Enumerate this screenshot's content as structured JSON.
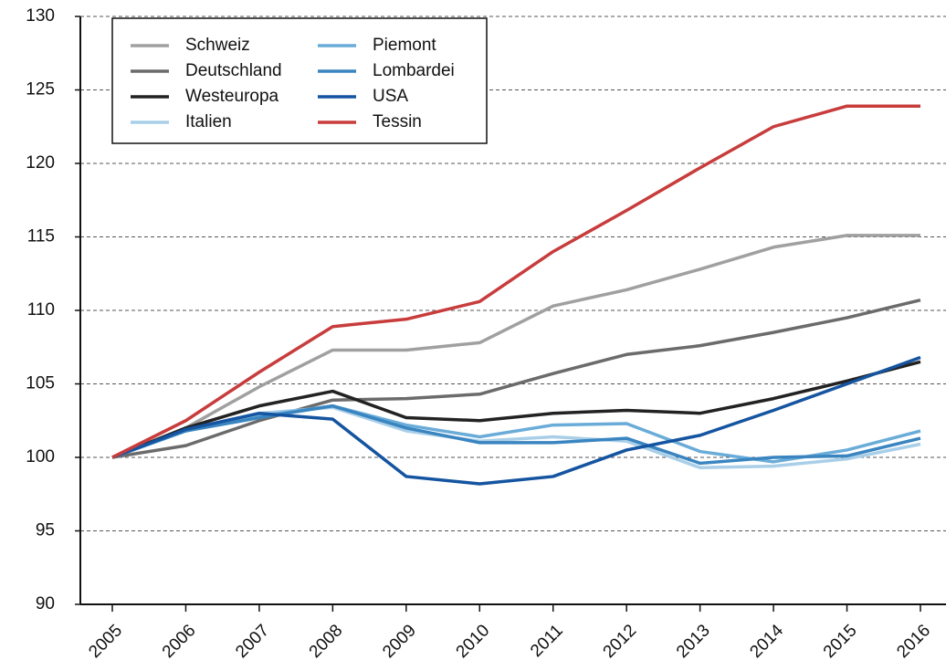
{
  "chart_data": {
    "type": "line",
    "categories": [
      "2005",
      "2006",
      "2007",
      "2008",
      "2009",
      "2010",
      "2011",
      "2012",
      "2013",
      "2014",
      "2015",
      "2016"
    ],
    "series": [
      {
        "name": "Schweiz",
        "color": "#a0a0a0",
        "values": [
          100,
          102,
          104.8,
          107.3,
          107.3,
          107.8,
          110.3,
          111.4,
          112.8,
          114.3,
          115.1,
          115.1
        ]
      },
      {
        "name": "Deutschland",
        "color": "#6b6b6b",
        "values": [
          100,
          100.8,
          102.5,
          103.9,
          104,
          104.3,
          105.7,
          107,
          107.6,
          108.5,
          109.5,
          110.7
        ]
      },
      {
        "name": "Westeuropa",
        "color": "#222222",
        "values": [
          100,
          102,
          103.5,
          104.5,
          102.7,
          102.5,
          103,
          103.2,
          103,
          104,
          105.2,
          106.5
        ]
      },
      {
        "name": "Italien",
        "color": "#a9cfe8",
        "values": [
          100,
          101.8,
          103,
          103.4,
          101.8,
          101.1,
          101.4,
          101.1,
          99.3,
          99.4,
          99.9,
          100.9
        ]
      },
      {
        "name": "Piemont",
        "color": "#6aacd8",
        "values": [
          100,
          101.8,
          102.8,
          103.5,
          102.2,
          101.4,
          102.2,
          102.3,
          100.4,
          99.7,
          100.5,
          101.8
        ]
      },
      {
        "name": "Lombardei",
        "color": "#3a85c0",
        "values": [
          100,
          101.8,
          102.7,
          103.5,
          102,
          101,
          101,
          101.3,
          99.6,
          100,
          100.1,
          101.3
        ]
      },
      {
        "name": "USA",
        "color": "#1454a0",
        "values": [
          100,
          101.9,
          103,
          102.6,
          98.7,
          98.2,
          98.7,
          100.5,
          101.5,
          103.2,
          105,
          106.8
        ]
      },
      {
        "name": "Tessin",
        "color": "#c83c3c",
        "values": [
          100,
          102.5,
          105.8,
          108.9,
          109.4,
          110.6,
          114,
          116.8,
          119.7,
          122.5,
          123.9,
          123.9
        ]
      }
    ],
    "ylim": [
      90,
      130
    ],
    "yticks": [
      90,
      95,
      100,
      105,
      110,
      115,
      120,
      125,
      130
    ],
    "grid": true,
    "legend": "upper left"
  }
}
